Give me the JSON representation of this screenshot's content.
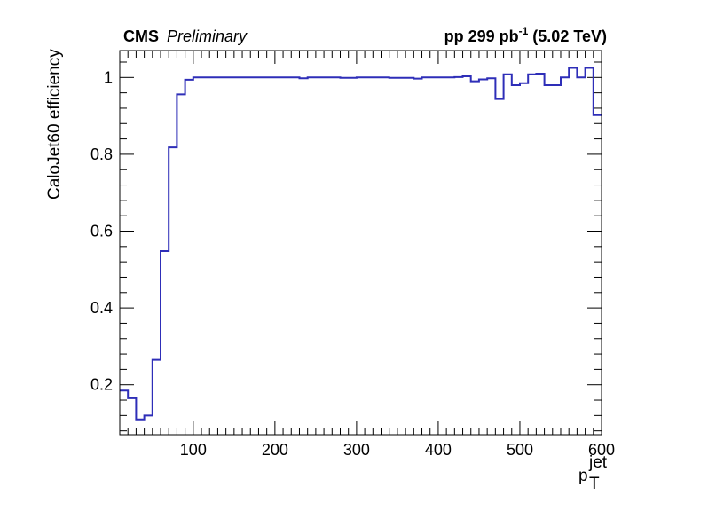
{
  "chart_data": {
    "type": "line",
    "step": true,
    "experiment": "CMS",
    "status": "Preliminary",
    "lumi_prefix": "pp 299 pb",
    "lumi_exponent": "-1",
    "lumi_suffix": " (5.02 TeV)",
    "xlabel_main": "p",
    "xlabel_sub": "T",
    "xlabel_sup": "jet",
    "ylabel": "CaloJet60 efficiency",
    "xlim": [
      10,
      600
    ],
    "ylim": [
      0.07,
      1.07
    ],
    "x_ticks": [
      100,
      200,
      300,
      400,
      500,
      600
    ],
    "x_tick_labels": [
      "100",
      "200",
      "300",
      "400",
      "500",
      "600"
    ],
    "y_ticks": [
      0.2,
      0.4,
      0.6,
      0.8,
      1.0
    ],
    "y_tick_labels": [
      "0.2",
      "0.4",
      "0.6",
      "0.8",
      "1"
    ],
    "line_color": "#2e2eb8",
    "series": [
      {
        "bin_edges": [
          10,
          20,
          30,
          40,
          50,
          60,
          70,
          80,
          90,
          100,
          120,
          140,
          160,
          180,
          200,
          220,
          230,
          240,
          260,
          280,
          300,
          320,
          340,
          360,
          370,
          380,
          400,
          420,
          430,
          440,
          450,
          460,
          470,
          480,
          490,
          500,
          510,
          520,
          530,
          540,
          550,
          560,
          570,
          580,
          590,
          600
        ],
        "values": [
          0.185,
          0.165,
          0.11,
          0.12,
          0.265,
          0.548,
          0.818,
          0.956,
          0.994,
          1.0,
          1.0,
          1.0,
          1.0,
          1.0,
          1.0,
          1.0,
          0.998,
          1.0,
          1.0,
          0.999,
          1.0,
          1.0,
          0.999,
          0.999,
          0.997,
          1.0,
          1.0,
          1.001,
          1.003,
          0.99,
          0.995,
          0.998,
          0.944,
          1.008,
          0.98,
          0.985,
          1.008,
          1.01,
          0.98,
          0.98,
          1.0,
          1.025,
          1.0,
          1.025,
          0.902
        ]
      }
    ]
  }
}
